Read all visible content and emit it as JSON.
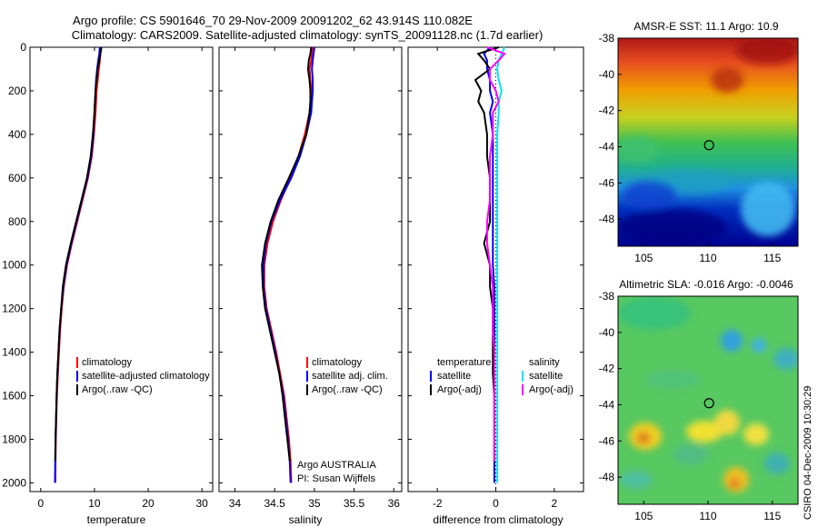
{
  "header": {
    "line1": "Argo profile: CS 5901646_70 29-Nov-2009 20091202_62 43.914S 110.082E",
    "line2": "Climatology: CARS2009. Satellite-adjusted climatology: synTS_20091128.nc (1.7d earlier)"
  },
  "credit": {
    "line1": "Argo AUSTRALIA",
    "line2": "PI: Susan Wijffels",
    "side": "CSIRO 04-Dec-2009 10:30:29"
  },
  "colors": {
    "climatology": "#ff0000",
    "satellite": "#0000ff",
    "argo": "#000000",
    "sal_satellite": "#00e5ee",
    "sal_argo": "#ff00ff"
  },
  "chart_data": [
    {
      "id": "temperature",
      "type": "line",
      "xlabel": "temperature",
      "xlim": [
        -2,
        32
      ],
      "xticks": [
        0,
        10,
        20,
        30
      ],
      "ylim": [
        2040,
        0
      ],
      "yticks": [
        0,
        200,
        400,
        600,
        800,
        1000,
        1200,
        1400,
        1600,
        1800,
        2000
      ],
      "legend": [
        "climatology",
        "satellite-adjusted climatology",
        "Argo(..raw -QC)"
      ],
      "depth": [
        0,
        30,
        60,
        100,
        150,
        200,
        250,
        300,
        400,
        500,
        600,
        700,
        800,
        900,
        1000,
        1100,
        1200,
        1300,
        1400,
        1500,
        1600,
        1700,
        1800,
        1900,
        2000
      ],
      "series": [
        {
          "name": "climatology",
          "color": "#ff0000",
          "values": [
            11.2,
            11.1,
            11.0,
            10.8,
            10.6,
            10.4,
            10.3,
            10.2,
            9.9,
            9.5,
            8.8,
            7.8,
            6.8,
            5.8,
            4.9,
            4.3,
            3.9,
            3.6,
            3.4,
            3.2,
            3.0,
            2.9,
            2.8,
            2.75,
            2.7
          ]
        },
        {
          "name": "satellite-adjusted climatology",
          "color": "#0000ff",
          "values": [
            11.0,
            10.9,
            10.7,
            10.5,
            10.3,
            10.2,
            10.1,
            10.0,
            9.8,
            9.4,
            8.7,
            7.7,
            6.7,
            5.7,
            4.8,
            4.2,
            3.8,
            3.5,
            3.3,
            3.1,
            2.95,
            2.85,
            2.75,
            2.7,
            2.65
          ]
        },
        {
          "name": "Argo(..raw -QC)",
          "color": "#000000",
          "values": [
            11.3,
            11.1,
            10.9,
            10.6,
            10.4,
            10.2,
            10.1,
            10.0,
            9.7,
            9.3,
            8.6,
            7.6,
            6.6,
            5.6,
            4.7,
            4.1,
            3.8,
            3.5,
            3.3,
            3.1,
            2.95,
            2.85,
            2.75,
            2.7
          ]
        }
      ]
    },
    {
      "id": "salinity",
      "type": "line",
      "xlabel": "salinity",
      "xlim": [
        33.8,
        36.1
      ],
      "xticks": [
        34,
        34.5,
        35,
        35.5,
        36
      ],
      "ylim": [
        2040,
        0
      ],
      "legend": [
        "climatology",
        "satellite adj. clim.",
        "Argo(..raw -QC)"
      ],
      "depth": [
        0,
        30,
        60,
        100,
        150,
        200,
        250,
        300,
        400,
        500,
        600,
        700,
        800,
        900,
        1000,
        1100,
        1200,
        1300,
        1400,
        1500,
        1600,
        1700,
        1800,
        1900,
        2000
      ],
      "series": [
        {
          "name": "climatology",
          "color": "#ff0000",
          "values": [
            34.98,
            34.97,
            34.96,
            34.94,
            34.95,
            34.96,
            34.95,
            34.94,
            34.88,
            34.8,
            34.7,
            34.58,
            34.48,
            34.41,
            34.37,
            34.37,
            34.4,
            34.46,
            34.52,
            34.57,
            34.62,
            34.65,
            34.68,
            34.7,
            34.71
          ]
        },
        {
          "name": "satellite adj. clim.",
          "color": "#0000ff",
          "values": [
            35.0,
            34.99,
            34.98,
            34.97,
            34.98,
            34.98,
            34.97,
            34.96,
            34.9,
            34.82,
            34.71,
            34.57,
            34.46,
            34.39,
            34.36,
            34.36,
            34.39,
            34.45,
            34.51,
            34.56,
            34.61,
            34.64,
            34.67,
            34.69,
            34.7
          ]
        },
        {
          "name": "Argo(..raw -QC)",
          "color": "#000000",
          "values": [
            34.96,
            34.95,
            34.93,
            34.92,
            34.94,
            34.95,
            34.95,
            34.94,
            34.9,
            34.8,
            34.68,
            34.55,
            34.45,
            34.38,
            34.34,
            34.35,
            34.38,
            34.44,
            34.5,
            34.56,
            34.6,
            34.63,
            34.66,
            34.69
          ]
        }
      ]
    },
    {
      "id": "difference",
      "type": "line",
      "xlabel": "difference from climatology",
      "xlim": [
        -3,
        3
      ],
      "xticks": [
        -2,
        0,
        2
      ],
      "ylim": [
        2040,
        0
      ],
      "legend_left": {
        "title": "temperature",
        "items": [
          "satellite",
          "Argo(-adj)"
        ]
      },
      "legend_right": {
        "title": "salinity",
        "items": [
          "satellite",
          "Argo(-adj)"
        ]
      },
      "depth": [
        0,
        30,
        60,
        100,
        150,
        200,
        250,
        300,
        400,
        500,
        600,
        700,
        800,
        900,
        1000,
        1100,
        1200,
        1300,
        1400,
        1500,
        1600,
        1700,
        1800,
        1900,
        2000
      ],
      "series": [
        {
          "name": "temperature satellite",
          "color": "#0000ff",
          "values": [
            -0.2,
            -0.4,
            -0.3,
            -0.3,
            -0.2,
            -0.2,
            -0.1,
            -0.2,
            -0.1,
            -0.1,
            -0.1,
            -0.1,
            -0.1,
            -0.1,
            -0.1,
            -0.05,
            -0.05,
            -0.05,
            -0.05,
            -0.05,
            -0.05,
            -0.05,
            -0.05,
            -0.05,
            -0.05
          ]
        },
        {
          "name": "temperature Argo(-adj)",
          "color": "#000000",
          "values": [
            0.1,
            -0.6,
            -0.4,
            -0.2,
            -0.7,
            -0.5,
            -0.6,
            -0.4,
            -0.3,
            -0.3,
            -0.2,
            -0.2,
            -0.2,
            -0.4,
            -0.2,
            -0.2,
            -0.1,
            -0.1,
            -0.1,
            -0.1,
            -0.05,
            -0.05,
            -0.05,
            -0.05
          ]
        },
        {
          "name": "salinity satellite",
          "color": "#00e5ee",
          "values": [
            0.3,
            0.2,
            0.1,
            0.05,
            0.1,
            0.2,
            0.1,
            0.1,
            0.05,
            0.05,
            0.05,
            0.05,
            0.05,
            0.05,
            0.05,
            0.05,
            0.05,
            0.05,
            0.05,
            0.05,
            0.05,
            0.05,
            0.05,
            0.05,
            0.05
          ]
        },
        {
          "name": "salinity Argo(-adj)",
          "color": "#ff00ff",
          "values": [
            -0.3,
            0.3,
            0.1,
            -0.2,
            -0.2,
            0.0,
            0.1,
            -0.1,
            -0.1,
            -0.2,
            -0.2,
            -0.2,
            -0.3,
            -0.3,
            -0.2,
            -0.1,
            -0.1,
            -0.1,
            -0.05,
            -0.05,
            -0.05,
            -0.05,
            -0.05,
            -0.05
          ]
        }
      ]
    },
    {
      "id": "sst_map",
      "type": "heatmap",
      "title": "AMSR-E SST: 11.1  Argo: 10.9",
      "xticks": [
        105,
        110,
        115
      ],
      "yticks": [
        -38,
        -40,
        -42,
        -44,
        -46,
        -48
      ],
      "xlim": [
        103,
        117
      ],
      "ylim": [
        -49.5,
        -38
      ],
      "argo_lon": 110.082,
      "argo_lat": -43.914
    },
    {
      "id": "sla_map",
      "type": "heatmap",
      "title": "Altimetric SLA: -0.016  Argo: -0.0046",
      "xticks": [
        105,
        110,
        115
      ],
      "yticks": [
        -38,
        -40,
        -42,
        -44,
        -46,
        -48
      ],
      "xlim": [
        103,
        117
      ],
      "ylim": [
        -49.5,
        -38
      ],
      "argo_lon": 110.082,
      "argo_lat": -43.914
    }
  ]
}
